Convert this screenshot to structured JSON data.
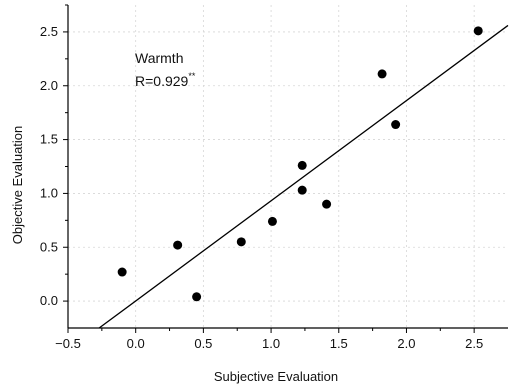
{
  "chart_data": {
    "type": "scatter",
    "title": "",
    "xlabel": "Subjective Evaluation",
    "ylabel": "Objective Evaluation",
    "xlim": [
      -0.5,
      2.75
    ],
    "ylim": [
      -0.25,
      2.75
    ],
    "x_ticks": [
      -0.5,
      0.0,
      0.5,
      1.0,
      1.5,
      2.0,
      2.5
    ],
    "x_tick_labels": [
      "−0.5",
      "0.0",
      "0.5",
      "1.0",
      "1.5",
      "2.0",
      "2.5"
    ],
    "y_ticks": [
      0.0,
      0.5,
      1.0,
      1.5,
      2.0,
      2.5
    ],
    "y_tick_labels": [
      "0.0",
      "0.5",
      "1.0",
      "1.5",
      "2.0",
      "2.5"
    ],
    "grid": true,
    "legend": "none",
    "annotation": {
      "label": "Warmth",
      "stat": "R=0.929",
      "significance": "**"
    },
    "points": [
      {
        "x": -0.1,
        "y": 0.27
      },
      {
        "x": 0.31,
        "y": 0.52
      },
      {
        "x": 0.45,
        "y": 0.04
      },
      {
        "x": 0.78,
        "y": 0.55
      },
      {
        "x": 1.01,
        "y": 0.74
      },
      {
        "x": 1.23,
        "y": 1.26
      },
      {
        "x": 1.23,
        "y": 1.03
      },
      {
        "x": 1.41,
        "y": 0.9
      },
      {
        "x": 1.82,
        "y": 2.11
      },
      {
        "x": 1.92,
        "y": 1.64
      },
      {
        "x": 2.53,
        "y": 2.51
      }
    ],
    "regression_line": {
      "x": [
        -0.27,
        2.75
      ],
      "y": [
        -0.25,
        2.56
      ]
    },
    "colors": {
      "points": "#000000",
      "line": "#000000"
    }
  }
}
